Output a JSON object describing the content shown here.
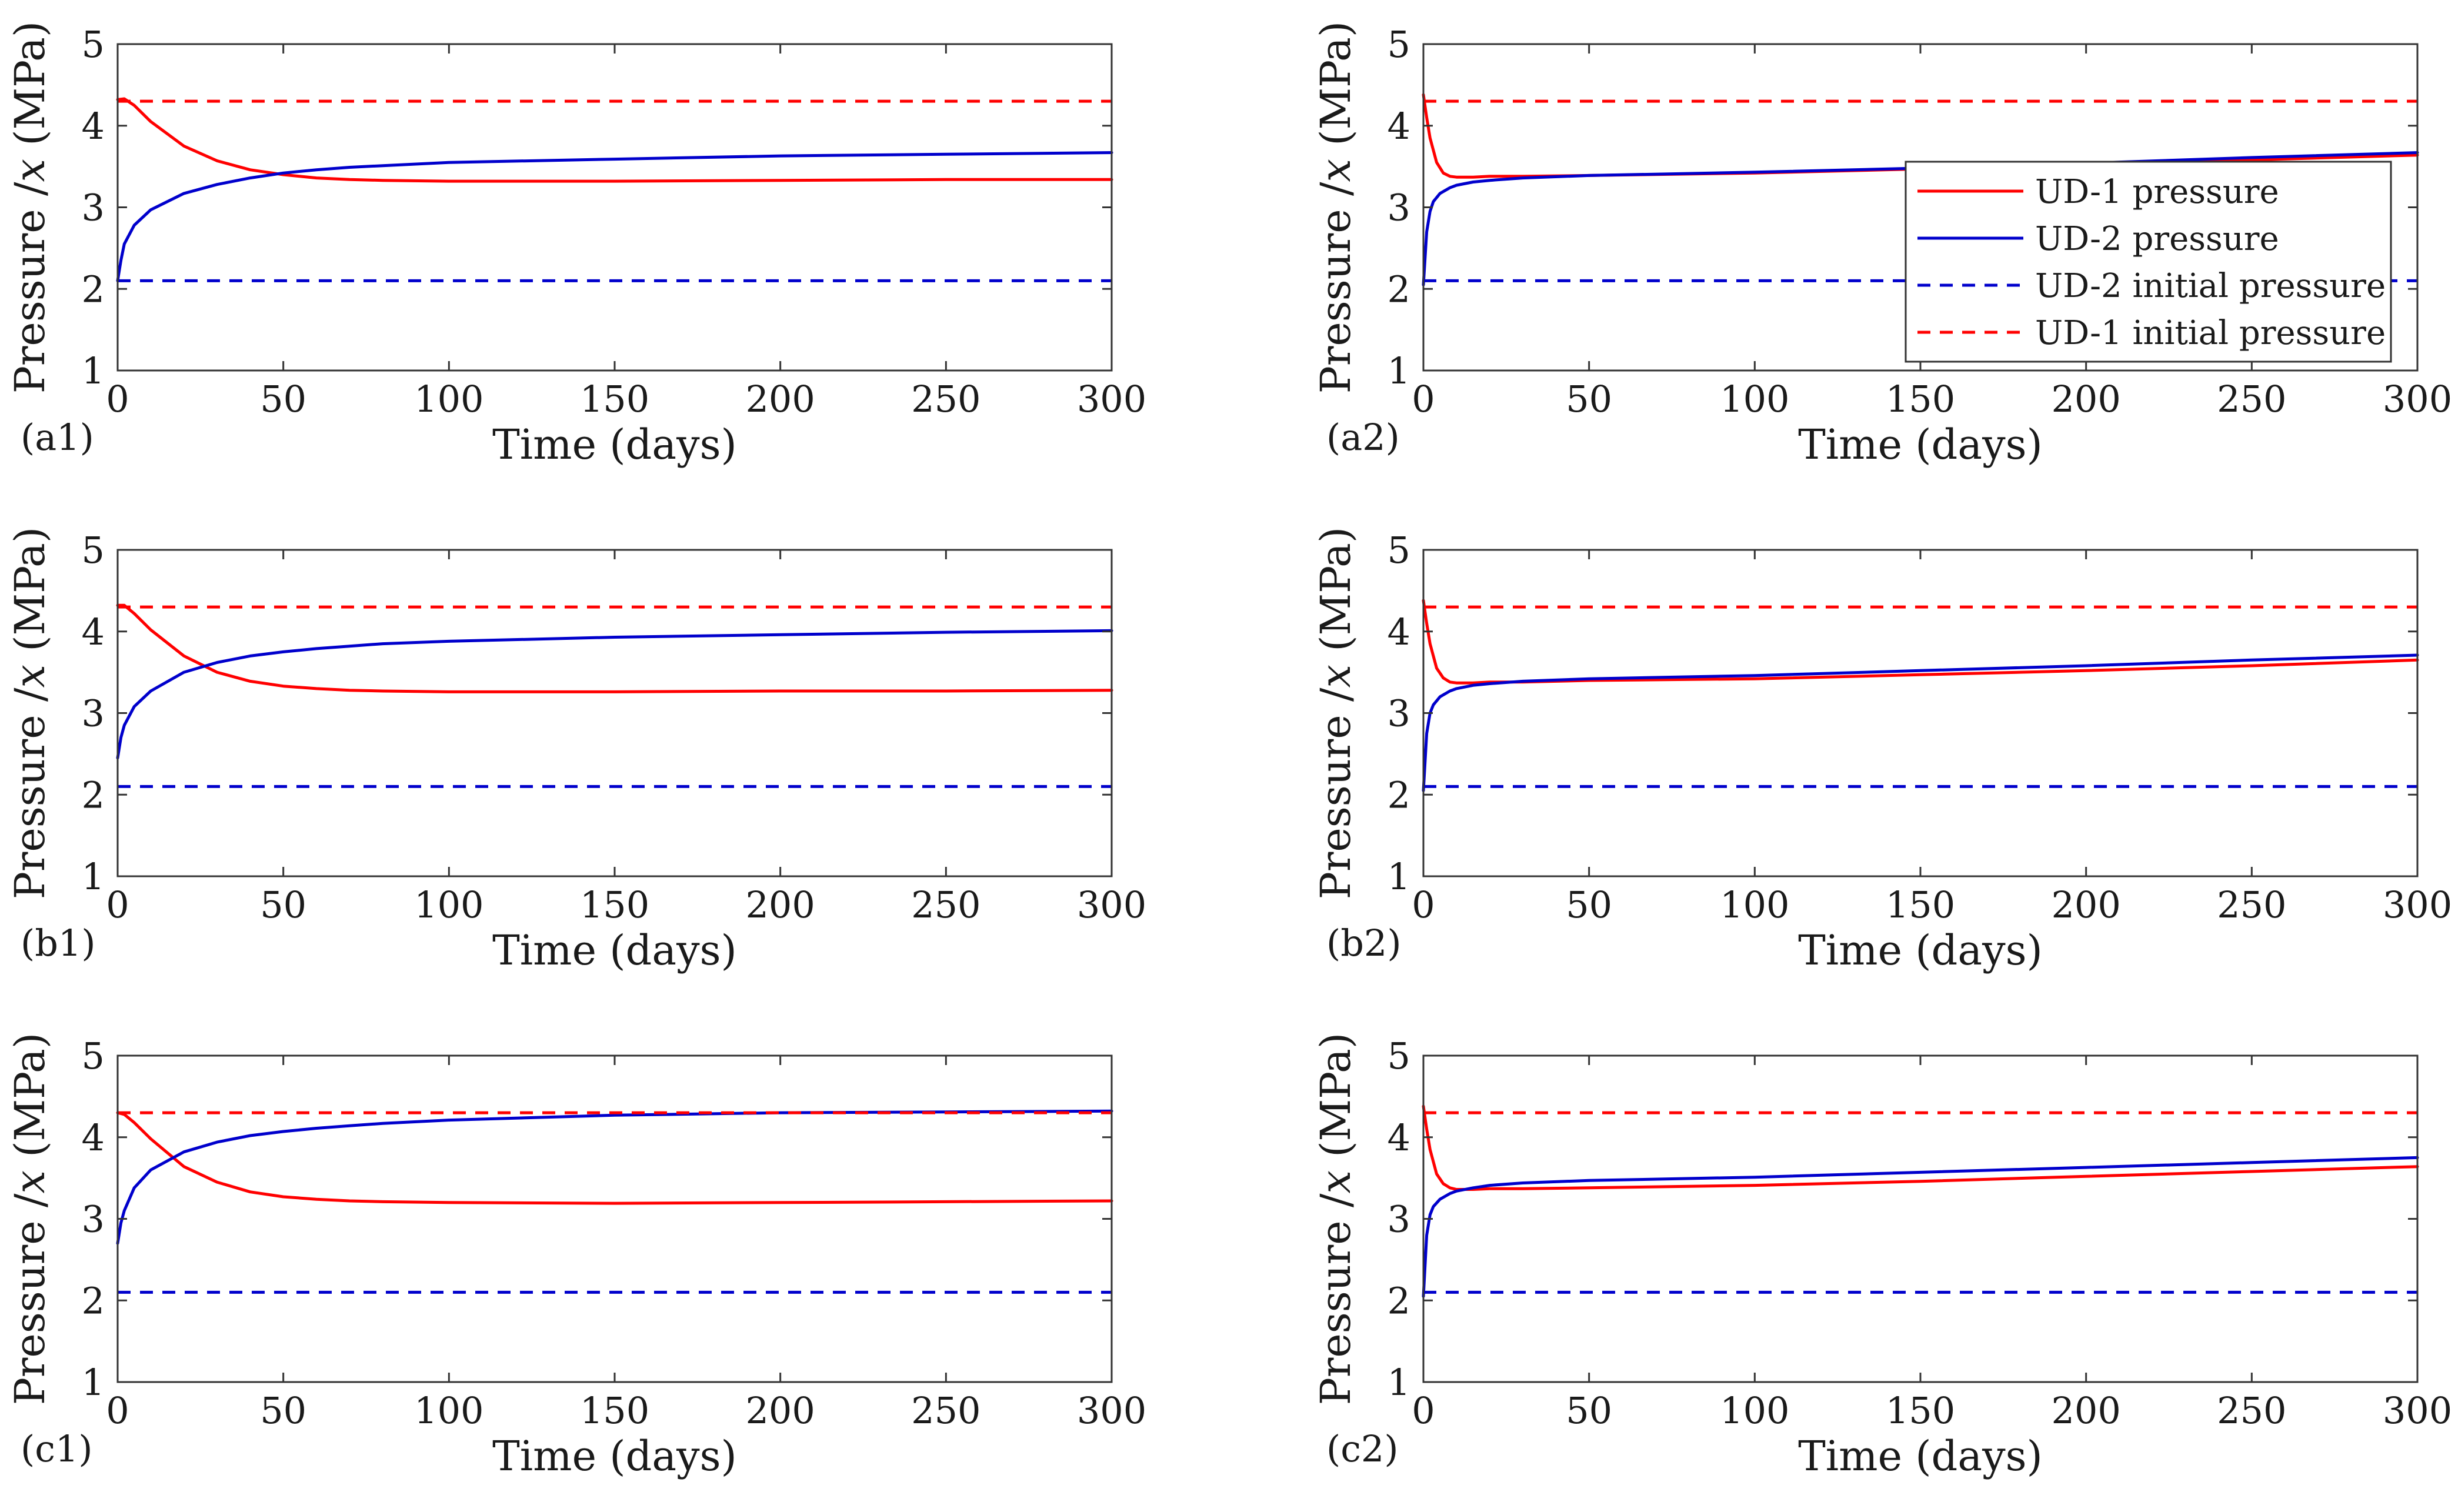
{
  "figure": {
    "legend": {
      "items": [
        {
          "label": "UD-1 pressure",
          "color": "#ff0000",
          "style": "solid"
        },
        {
          "label": "UD-2 pressure",
          "color": "#0000cc",
          "style": "solid"
        },
        {
          "label": "UD-2 initial pressure",
          "color": "#0000cc",
          "style": "dashed"
        },
        {
          "label": "UD-1 initial pressure",
          "color": "#ff0000",
          "style": "dashed"
        }
      ],
      "placement": "inside right of panel a2"
    }
  },
  "chart_data": [
    {
      "panel": "(a1)",
      "type": "line",
      "xlabel": "Time (days)",
      "ylabel_prefix": "Pressure /",
      "ylabel_var": "x",
      "ylabel_suffix": " (MPa)",
      "xlim": [
        0,
        300
      ],
      "ylim": [
        1,
        5
      ],
      "xticks": [
        0,
        50,
        100,
        150,
        200,
        250,
        300
      ],
      "yticks": [
        1,
        2,
        3,
        4,
        5
      ],
      "grid": false,
      "series": [
        {
          "name": "UD-1 pressure",
          "color": "#ff0000",
          "dash": false,
          "x": [
            0,
            2,
            5,
            10,
            20,
            30,
            40,
            50,
            60,
            70,
            80,
            100,
            150,
            200,
            250,
            300
          ],
          "y": [
            4.32,
            4.33,
            4.25,
            4.05,
            3.75,
            3.57,
            3.46,
            3.4,
            3.36,
            3.34,
            3.33,
            3.32,
            3.32,
            3.33,
            3.34,
            3.34
          ]
        },
        {
          "name": "UD-2 pressure",
          "color": "#0000cc",
          "dash": false,
          "x": [
            0,
            1,
            2,
            5,
            10,
            20,
            30,
            40,
            50,
            60,
            70,
            80,
            100,
            150,
            200,
            250,
            300
          ],
          "y": [
            2.1,
            2.35,
            2.55,
            2.78,
            2.97,
            3.17,
            3.28,
            3.36,
            3.42,
            3.46,
            3.49,
            3.51,
            3.55,
            3.59,
            3.63,
            3.65,
            3.67
          ]
        },
        {
          "name": "UD-2 initial pressure",
          "color": "#0000cc",
          "dash": true,
          "x": [
            0,
            300
          ],
          "y": [
            2.1,
            2.1
          ]
        },
        {
          "name": "UD-1 initial pressure",
          "color": "#ff0000",
          "dash": true,
          "x": [
            0,
            300
          ],
          "y": [
            4.3,
            4.3
          ]
        }
      ]
    },
    {
      "panel": "(a2)",
      "type": "line",
      "xlabel": "Time (days)",
      "ylabel_prefix": "Pressure /",
      "ylabel_var": "x",
      "ylabel_suffix": " (MPa)",
      "xlim": [
        0,
        300
      ],
      "ylim": [
        1,
        5
      ],
      "xticks": [
        0,
        50,
        100,
        150,
        200,
        250,
        300
      ],
      "yticks": [
        1,
        2,
        3,
        4,
        5
      ],
      "grid": false,
      "legend": true,
      "series": [
        {
          "name": "UD-1 pressure",
          "color": "#ff0000",
          "dash": false,
          "x": [
            0,
            1,
            2,
            4,
            6,
            8,
            10,
            15,
            20,
            30,
            50,
            100,
            150,
            200,
            250,
            300
          ],
          "y": [
            4.38,
            4.1,
            3.85,
            3.55,
            3.42,
            3.38,
            3.37,
            3.37,
            3.38,
            3.38,
            3.39,
            3.42,
            3.47,
            3.52,
            3.58,
            3.64
          ]
        },
        {
          "name": "UD-2 pressure",
          "color": "#0000cc",
          "dash": false,
          "x": [
            0,
            1,
            2,
            3,
            5,
            8,
            10,
            15,
            20,
            30,
            50,
            100,
            150,
            200,
            250,
            300
          ],
          "y": [
            2.05,
            2.7,
            2.95,
            3.07,
            3.17,
            3.24,
            3.27,
            3.31,
            3.33,
            3.36,
            3.39,
            3.43,
            3.48,
            3.54,
            3.61,
            3.67
          ]
        },
        {
          "name": "UD-2 initial pressure",
          "color": "#0000cc",
          "dash": true,
          "x": [
            0,
            300
          ],
          "y": [
            2.1,
            2.1
          ]
        },
        {
          "name": "UD-1 initial pressure",
          "color": "#ff0000",
          "dash": true,
          "x": [
            0,
            300
          ],
          "y": [
            4.3,
            4.3
          ]
        }
      ]
    },
    {
      "panel": "(b1)",
      "type": "line",
      "xlabel": "Time (days)",
      "ylabel_prefix": "Pressure /",
      "ylabel_var": "x",
      "ylabel_suffix": " (MPa)",
      "xlim": [
        0,
        300
      ],
      "ylim": [
        1,
        5
      ],
      "xticks": [
        0,
        50,
        100,
        150,
        200,
        250,
        300
      ],
      "yticks": [
        1,
        2,
        3,
        4,
        5
      ],
      "grid": false,
      "series": [
        {
          "name": "UD-1 pressure",
          "color": "#ff0000",
          "dash": false,
          "x": [
            0,
            2,
            5,
            10,
            20,
            30,
            40,
            50,
            60,
            70,
            80,
            100,
            150,
            200,
            250,
            300
          ],
          "y": [
            4.32,
            4.32,
            4.22,
            4.02,
            3.7,
            3.5,
            3.39,
            3.33,
            3.3,
            3.28,
            3.27,
            3.26,
            3.26,
            3.27,
            3.27,
            3.28
          ]
        },
        {
          "name": "UD-2 pressure",
          "color": "#0000cc",
          "dash": false,
          "x": [
            0,
            1,
            2,
            5,
            10,
            20,
            30,
            40,
            50,
            60,
            70,
            80,
            100,
            150,
            200,
            250,
            300
          ],
          "y": [
            2.45,
            2.7,
            2.85,
            3.08,
            3.27,
            3.5,
            3.62,
            3.7,
            3.75,
            3.79,
            3.82,
            3.85,
            3.88,
            3.93,
            3.96,
            3.99,
            4.01
          ]
        },
        {
          "name": "UD-2 initial pressure",
          "color": "#0000cc",
          "dash": true,
          "x": [
            0,
            300
          ],
          "y": [
            2.1,
            2.1
          ]
        },
        {
          "name": "UD-1 initial pressure",
          "color": "#ff0000",
          "dash": true,
          "x": [
            0,
            300
          ],
          "y": [
            4.3,
            4.3
          ]
        }
      ]
    },
    {
      "panel": "(b2)",
      "type": "line",
      "xlabel": "Time (days)",
      "ylabel_prefix": "Pressure /",
      "ylabel_var": "x",
      "ylabel_suffix": " (MPa)",
      "xlim": [
        0,
        300
      ],
      "ylim": [
        1,
        5
      ],
      "xticks": [
        0,
        50,
        100,
        150,
        200,
        250,
        300
      ],
      "yticks": [
        1,
        2,
        3,
        4,
        5
      ],
      "grid": false,
      "series": [
        {
          "name": "UD-1 pressure",
          "color": "#ff0000",
          "dash": false,
          "x": [
            0,
            1,
            2,
            4,
            6,
            8,
            10,
            15,
            20,
            30,
            50,
            100,
            150,
            200,
            250,
            300
          ],
          "y": [
            4.38,
            4.1,
            3.85,
            3.55,
            3.43,
            3.38,
            3.37,
            3.37,
            3.38,
            3.38,
            3.4,
            3.42,
            3.47,
            3.52,
            3.58,
            3.65
          ]
        },
        {
          "name": "UD-2 pressure",
          "color": "#0000cc",
          "dash": false,
          "x": [
            0,
            1,
            2,
            3,
            5,
            8,
            10,
            15,
            20,
            30,
            50,
            100,
            150,
            200,
            250,
            300
          ],
          "y": [
            2.05,
            2.75,
            3.0,
            3.1,
            3.2,
            3.27,
            3.3,
            3.34,
            3.36,
            3.39,
            3.42,
            3.46,
            3.52,
            3.58,
            3.65,
            3.71
          ]
        },
        {
          "name": "UD-2 initial pressure",
          "color": "#0000cc",
          "dash": true,
          "x": [
            0,
            300
          ],
          "y": [
            2.1,
            2.1
          ]
        },
        {
          "name": "UD-1 initial pressure",
          "color": "#ff0000",
          "dash": true,
          "x": [
            0,
            300
          ],
          "y": [
            4.3,
            4.3
          ]
        }
      ]
    },
    {
      "panel": "(c1)",
      "type": "line",
      "xlabel": "Time (days)",
      "ylabel_prefix": "Pressure /",
      "ylabel_var": "x",
      "ylabel_suffix": " (MPa)",
      "xlim": [
        0,
        300
      ],
      "ylim": [
        1,
        5
      ],
      "xticks": [
        0,
        50,
        100,
        150,
        200,
        250,
        300
      ],
      "yticks": [
        1,
        2,
        3,
        4,
        5
      ],
      "grid": false,
      "series": [
        {
          "name": "UD-1 pressure",
          "color": "#ff0000",
          "dash": false,
          "x": [
            0,
            2,
            5,
            10,
            20,
            30,
            40,
            50,
            60,
            70,
            80,
            100,
            150,
            200,
            250,
            300
          ],
          "y": [
            4.3,
            4.28,
            4.18,
            3.98,
            3.64,
            3.45,
            3.33,
            3.27,
            3.24,
            3.22,
            3.21,
            3.2,
            3.19,
            3.2,
            3.21,
            3.22
          ]
        },
        {
          "name": "UD-2 pressure",
          "color": "#0000cc",
          "dash": false,
          "x": [
            0,
            1,
            2,
            5,
            10,
            20,
            30,
            40,
            50,
            60,
            70,
            80,
            100,
            150,
            200,
            250,
            300
          ],
          "y": [
            2.7,
            2.95,
            3.1,
            3.38,
            3.6,
            3.82,
            3.94,
            4.02,
            4.07,
            4.11,
            4.14,
            4.17,
            4.21,
            4.27,
            4.3,
            4.31,
            4.32
          ]
        },
        {
          "name": "UD-2 initial pressure",
          "color": "#0000cc",
          "dash": true,
          "x": [
            0,
            300
          ],
          "y": [
            2.1,
            2.1
          ]
        },
        {
          "name": "UD-1 initial pressure",
          "color": "#ff0000",
          "dash": true,
          "x": [
            0,
            300
          ],
          "y": [
            4.3,
            4.3
          ]
        }
      ]
    },
    {
      "panel": "(c2)",
      "type": "line",
      "xlabel": "Time (days)",
      "ylabel_prefix": "Pressure /",
      "ylabel_var": "x",
      "ylabel_suffix": " (MPa)",
      "xlim": [
        0,
        300
      ],
      "ylim": [
        1,
        5
      ],
      "xticks": [
        0,
        50,
        100,
        150,
        200,
        250,
        300
      ],
      "yticks": [
        1,
        2,
        3,
        4,
        5
      ],
      "grid": false,
      "series": [
        {
          "name": "UD-1 pressure",
          "color": "#ff0000",
          "dash": false,
          "x": [
            0,
            1,
            2,
            4,
            6,
            8,
            10,
            15,
            20,
            30,
            50,
            100,
            150,
            200,
            250,
            300
          ],
          "y": [
            4.38,
            4.1,
            3.85,
            3.55,
            3.43,
            3.38,
            3.36,
            3.36,
            3.37,
            3.37,
            3.38,
            3.41,
            3.46,
            3.52,
            3.58,
            3.64
          ]
        },
        {
          "name": "UD-2 pressure",
          "color": "#0000cc",
          "dash": false,
          "x": [
            0,
            1,
            2,
            3,
            5,
            8,
            10,
            15,
            20,
            30,
            50,
            100,
            150,
            200,
            250,
            300
          ],
          "y": [
            2.05,
            2.8,
            3.05,
            3.15,
            3.24,
            3.31,
            3.34,
            3.38,
            3.41,
            3.44,
            3.47,
            3.51,
            3.57,
            3.63,
            3.69,
            3.75
          ]
        },
        {
          "name": "UD-2 initial pressure",
          "color": "#0000cc",
          "dash": true,
          "x": [
            0,
            300
          ],
          "y": [
            2.1,
            2.1
          ]
        },
        {
          "name": "UD-1 initial pressure",
          "color": "#ff0000",
          "dash": true,
          "x": [
            0,
            300
          ],
          "y": [
            4.3,
            4.3
          ]
        }
      ]
    }
  ]
}
